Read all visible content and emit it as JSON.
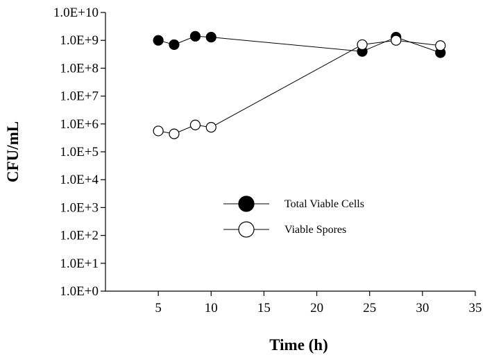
{
  "chart_data": {
    "type": "scatter",
    "title": "",
    "xlabel": "Time (h)",
    "ylabel": "CFU/mL",
    "xlim": [
      0,
      35
    ],
    "ylim": [
      1,
      10000000000
    ],
    "yscale": "log",
    "grid": false,
    "legend_position": "center",
    "x_tick_labels": [
      "5",
      "10",
      "15",
      "20",
      "25",
      "30",
      "35"
    ],
    "x_tick_values": [
      5,
      10,
      15,
      20,
      25,
      30,
      35
    ],
    "y_tick_labels": [
      "1.0E+0",
      "1.0E+1",
      "1.0E+2",
      "1.0E+3",
      "1.0E+4",
      "1.0E+5",
      "1.0E+6",
      "1.0E+7",
      "1.0E+8",
      "1.0E+9",
      "1.0E+10"
    ],
    "y_tick_values": [
      1,
      10,
      100,
      1000,
      10000,
      100000,
      1000000,
      10000000,
      100000000,
      1000000000,
      10000000000
    ],
    "series": [
      {
        "name": "Total Viable Cells",
        "marker": "filled-circle",
        "color": "#000000",
        "x": [
          5,
          6.5,
          8.5,
          10,
          24.3,
          27.5,
          31.7
        ],
        "y": [
          1000000000,
          700000000,
          1400000000,
          1300000000,
          400000000,
          1300000000,
          360000000
        ]
      },
      {
        "name": "Viable Spores",
        "marker": "open-circle",
        "color": "#000000",
        "x": [
          5,
          6.5,
          8.5,
          10,
          24.3,
          27.5,
          31.7
        ],
        "y": [
          560000,
          440000,
          920000,
          760000,
          700000000,
          1000000000,
          650000000
        ]
      }
    ]
  }
}
